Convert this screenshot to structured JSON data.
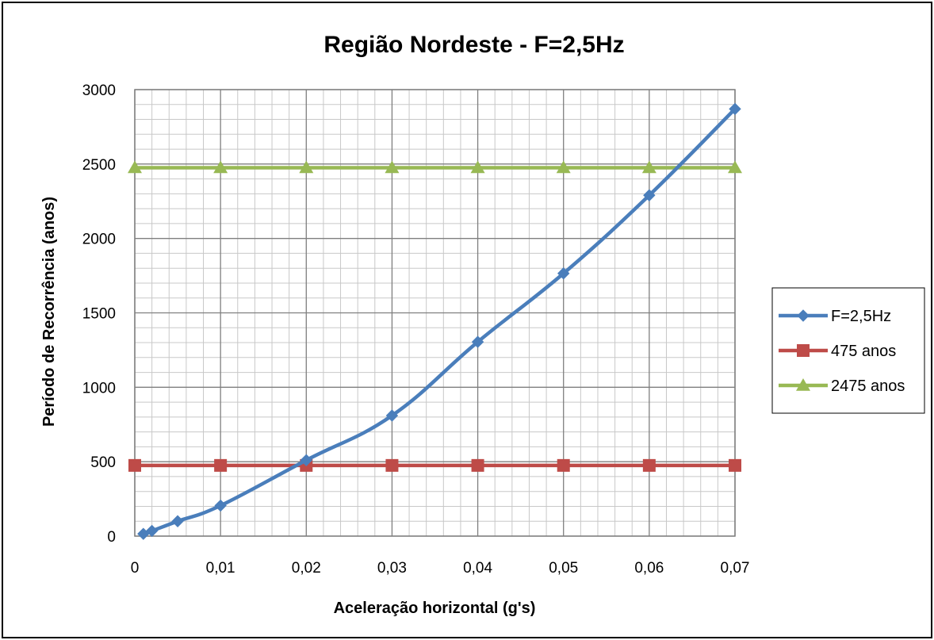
{
  "chart_data": {
    "type": "line",
    "title": "Região Nordeste - F=2,5Hz",
    "xlabel": "Aceleração horizontal (g's)",
    "ylabel": "Período de Recorrência (anos)",
    "xlim": [
      0,
      0.07
    ],
    "ylim": [
      0,
      3000
    ],
    "x_ticks": [
      0,
      0.01,
      0.02,
      0.03,
      0.04,
      0.05,
      0.06,
      0.07
    ],
    "x_tick_labels": [
      "0",
      "0,01",
      "0,02",
      "0,03",
      "0,04",
      "0,05",
      "0,06",
      "0,07"
    ],
    "y_ticks": [
      0,
      500,
      1000,
      1500,
      2000,
      2500,
      3000
    ],
    "y_tick_labels": [
      "0",
      "500",
      "1000",
      "1500",
      "2000",
      "2500",
      "3000"
    ],
    "grid": true,
    "legend_position": "right",
    "series": [
      {
        "name": "F=2,5Hz",
        "color": "#4a7ebb",
        "marker": "diamond",
        "smooth": true,
        "x": [
          0.001,
          0.002,
          0.005,
          0.01,
          0.02,
          0.03,
          0.04,
          0.05,
          0.06,
          0.07
        ],
        "y": [
          15,
          35,
          100,
          205,
          510,
          810,
          1305,
          1765,
          2290,
          2870
        ]
      },
      {
        "name": "475 anos",
        "color": "#be4b48",
        "marker": "square",
        "smooth": false,
        "x": [
          0,
          0.01,
          0.02,
          0.03,
          0.04,
          0.05,
          0.06,
          0.07
        ],
        "y": [
          475,
          475,
          475,
          475,
          475,
          475,
          475,
          475
        ]
      },
      {
        "name": "2475 anos",
        "color": "#98b954",
        "marker": "triangle",
        "smooth": false,
        "x": [
          0,
          0.01,
          0.02,
          0.03,
          0.04,
          0.05,
          0.06,
          0.07
        ],
        "y": [
          2475,
          2475,
          2475,
          2475,
          2475,
          2475,
          2475,
          2475
        ]
      }
    ]
  }
}
